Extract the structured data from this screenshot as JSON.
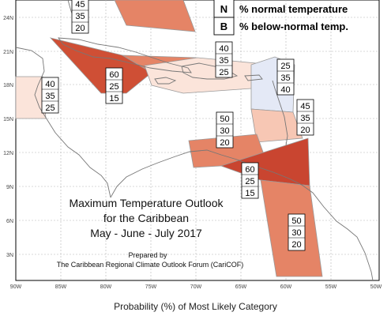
{
  "title": {
    "line1": "Maximum Temperature Outlook",
    "line2": "for the Caribbean",
    "line3": "May - June - July 2017"
  },
  "prepared": {
    "line1": "Prepared by",
    "line2": "The Caribbean Regional Climate Outlook Forum (CariCOF)"
  },
  "legend": {
    "items": [
      {
        "letter": "N",
        "text": "% normal temperature"
      },
      {
        "letter": "B",
        "text": "% below-normal temp."
      }
    ]
  },
  "footer": "Probability (%) of Most Likely Category",
  "latitude_labels": [
    "24N",
    "21N",
    "18N",
    "15N",
    "12N",
    "9N",
    "6N",
    "3N"
  ],
  "longitude_labels": [
    "90W",
    "85W",
    "80W",
    "75W",
    "70W",
    "65W",
    "60W",
    "55W",
    "50W"
  ],
  "regions": [
    {
      "name": "top-partial",
      "values": [
        "45",
        "35",
        "20"
      ],
      "fill": "#e9967f"
    },
    {
      "name": "cuba-bahamas-west",
      "values": [
        "60",
        "25",
        "15"
      ],
      "fill": "#cf4f35"
    },
    {
      "name": "hispaniola-pr",
      "values": [
        "40",
        "35",
        "25"
      ],
      "fill": "#fbe4da"
    },
    {
      "name": "central-america",
      "values": [
        "40",
        "35",
        "25"
      ],
      "fill": "#fbe4da"
    },
    {
      "name": "leeward-islands",
      "values": [
        "25",
        "35",
        "40"
      ],
      "fill": "#e4e9f6"
    },
    {
      "name": "windward-islands",
      "values": [
        "45",
        "35",
        "20"
      ],
      "fill": "#f7c7b4"
    },
    {
      "name": "abc-islands",
      "values": [
        "50",
        "30",
        "20"
      ],
      "fill": "#e58466"
    },
    {
      "name": "trinidad-guyana-north",
      "values": [
        "60",
        "25",
        "15"
      ],
      "fill": "#c94530"
    },
    {
      "name": "guianas",
      "values": [
        "50",
        "30",
        "20"
      ],
      "fill": "#e58466"
    }
  ],
  "colors": {
    "above_high": "#cf4f35",
    "above_mid": "#e58466",
    "above_low": "#fbe4da",
    "below_low": "#e4e9f6",
    "grid": "#b0b0b0",
    "land": "#777777"
  }
}
